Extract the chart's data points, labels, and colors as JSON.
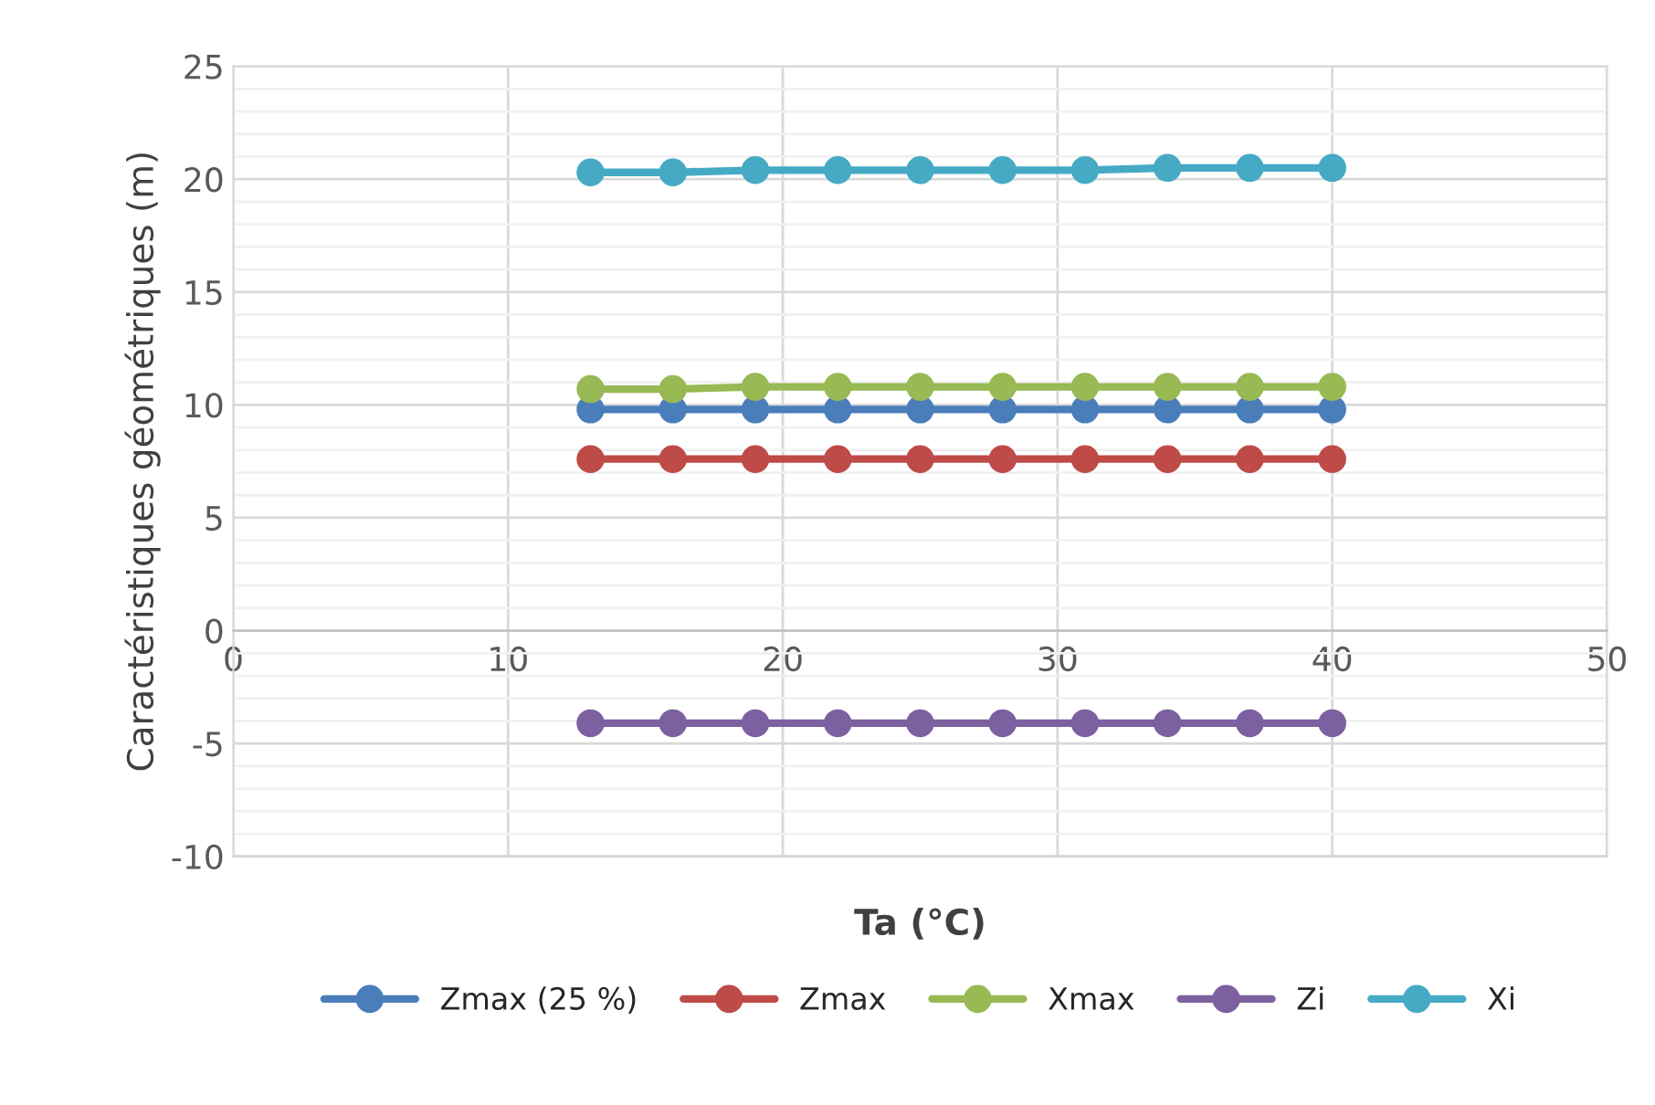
{
  "chart_data": {
    "type": "line",
    "xlabel": "Ta (°C)",
    "ylabel": "Caractéristiques géométriques (m)",
    "x": [
      13,
      16,
      19,
      22,
      25,
      28,
      31,
      34,
      37,
      40
    ],
    "series": [
      {
        "name": "Zmax (25 %)",
        "color": "#4a7ebb",
        "values": [
          9.8,
          9.8,
          9.8,
          9.8,
          9.8,
          9.8,
          9.8,
          9.8,
          9.8,
          9.8
        ]
      },
      {
        "name": "Zmax",
        "color": "#be4b48",
        "values": [
          7.6,
          7.6,
          7.6,
          7.6,
          7.6,
          7.6,
          7.6,
          7.6,
          7.6,
          7.6
        ]
      },
      {
        "name": "Xmax",
        "color": "#98b954",
        "values": [
          10.7,
          10.7,
          10.8,
          10.8,
          10.8,
          10.8,
          10.8,
          10.8,
          10.8,
          10.8
        ]
      },
      {
        "name": "Zi",
        "color": "#7d60a0",
        "values": [
          -4.1,
          -4.1,
          -4.1,
          -4.1,
          -4.1,
          -4.1,
          -4.1,
          -4.1,
          -4.1,
          -4.1
        ]
      },
      {
        "name": "Xi",
        "color": "#46aac5",
        "values": [
          20.3,
          20.3,
          20.4,
          20.4,
          20.4,
          20.4,
          20.4,
          20.5,
          20.5,
          20.5
        ]
      }
    ],
    "xlim": [
      0,
      50
    ],
    "xticks": [
      0,
      10,
      20,
      30,
      40,
      50
    ],
    "ylim": [
      -10,
      25
    ],
    "yticks": [
      -10,
      -5,
      0,
      5,
      10,
      15,
      20,
      25
    ],
    "grid": true,
    "legend": "bottom",
    "marker": "circle",
    "line_style": "solid"
  }
}
